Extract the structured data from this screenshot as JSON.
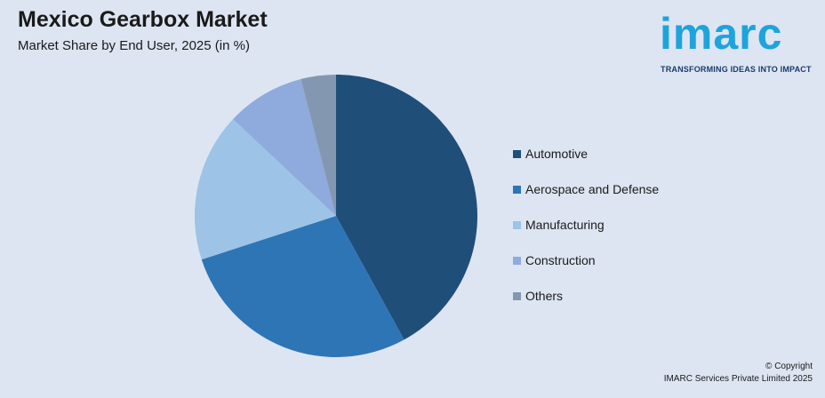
{
  "header": {
    "title": "Mexico Gearbox Market",
    "subtitle": "Market Share by End User, 2025 (in %)"
  },
  "logo": {
    "wordmark": "imarc",
    "tagline": "TRANSFORMING IDEAS INTO IMPACT",
    "color": "#1fa3dc"
  },
  "chart_data": {
    "type": "pie",
    "categories": [
      "Automotive",
      "Aerospace and Defense",
      "Manufacturing",
      "Construction",
      "Others"
    ],
    "values": [
      42,
      28,
      17,
      9,
      4
    ],
    "colors": [
      "#1f4e79",
      "#2e75b6",
      "#9dc3e6",
      "#8faadc",
      "#8497b0"
    ],
    "legend_position": "right"
  },
  "footer": {
    "copyright": "© Copyright",
    "company": "IMARC Services Private Limited 2025"
  }
}
